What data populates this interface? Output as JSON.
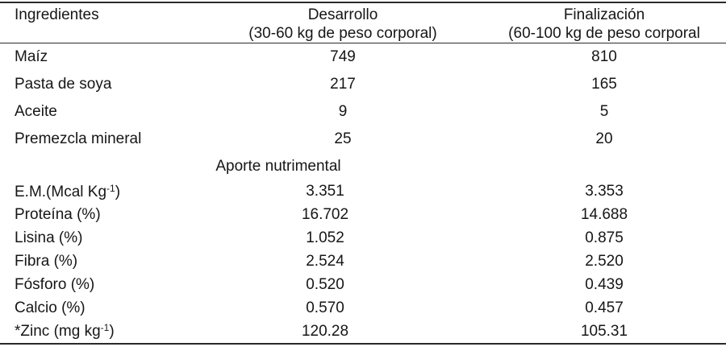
{
  "table": {
    "columns": [
      {
        "line1": "Ingredientes",
        "line2": ""
      },
      {
        "line1": "Desarrollo",
        "line2": "(30-60 kg de peso corporal)"
      },
      {
        "line1": "Finalización",
        "line2": "(60-100 kg de peso corporal"
      }
    ],
    "ingredient_rows": [
      {
        "label": "Maíz",
        "label_sup": "",
        "label_end": "",
        "desarrollo": "749",
        "finalizacion": "810"
      },
      {
        "label": "Pasta de soya",
        "label_sup": "",
        "label_end": "",
        "desarrollo": "217",
        "finalizacion": "165"
      },
      {
        "label": "Aceite",
        "label_sup": "",
        "label_end": "",
        "desarrollo": "9",
        "finalizacion": "5"
      },
      {
        "label": "Premezcla mineral",
        "label_sup": "",
        "label_end": "",
        "desarrollo": "25",
        "finalizacion": "20"
      }
    ],
    "section_header": "Aporte nutrimental",
    "nutrient_rows": [
      {
        "label": "E.M.(Mcal Kg",
        "label_sup": "-1",
        "label_end": ")",
        "desarrollo": "3.351",
        "finalizacion": "3.353"
      },
      {
        "label": "Proteína (%)",
        "label_sup": "",
        "label_end": "",
        "desarrollo": "16.702",
        "finalizacion": "14.688"
      },
      {
        "label": "Lisina (%)",
        "label_sup": "",
        "label_end": "",
        "desarrollo": "1.052",
        "finalizacion": "0.875"
      },
      {
        "label": "Fibra (%)",
        "label_sup": "",
        "label_end": "",
        "desarrollo": "2.524",
        "finalizacion": "2.520"
      },
      {
        "label": "Fósforo (%)",
        "label_sup": "",
        "label_end": "",
        "desarrollo": "0.520",
        "finalizacion": "0.439"
      },
      {
        "label": "Calcio (%)",
        "label_sup": "",
        "label_end": "",
        "desarrollo": "0.570",
        "finalizacion": "0.457"
      },
      {
        "label": "*Zinc (mg kg",
        "label_sup": "-1",
        "label_end": ")",
        "desarrollo": "120.28",
        "finalizacion": "105.31"
      }
    ]
  },
  "colors": {
    "text": "#161616",
    "rule": "#2a2a2a",
    "background": "#ffffff"
  }
}
